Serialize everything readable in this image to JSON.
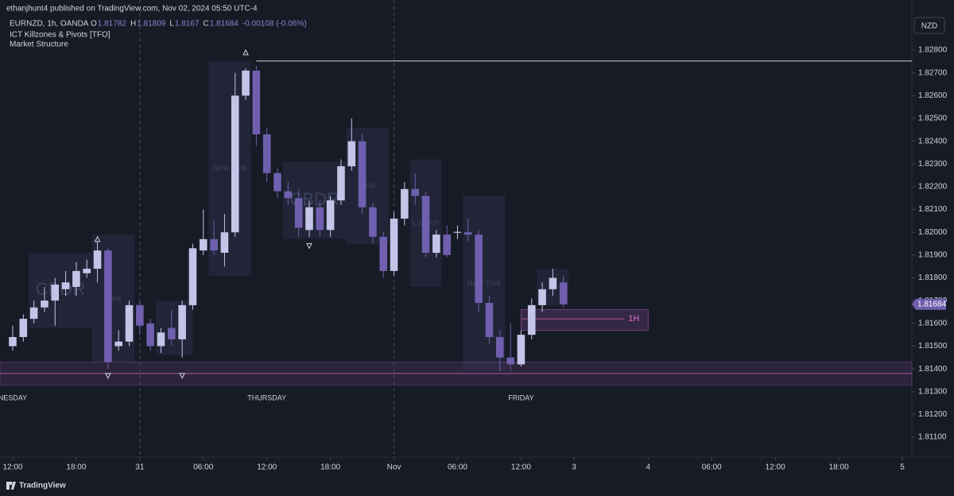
{
  "chart_data": {
    "type": "candlestick",
    "header": "ethanjhunt4 published on TradingView.com, Nov 02, 2024 05:50 UTC-4",
    "symbol": "EURNZD, 1h, OANDA",
    "ohlc_legend": [
      {
        "label": "O",
        "value": 1.81782
      },
      {
        "label": "H",
        "value": 1.81809
      },
      {
        "label": "L",
        "value": 1.8167
      },
      {
        "label": "C",
        "value": 1.81684
      }
    ],
    "change": -0.00108,
    "change_pct": "(-0.06%)",
    "indicators": [
      "ICT Killzones & Pivots [TFO]",
      "Market Structure"
    ],
    "currency": "NZD",
    "footer": "TradingView",
    "up_color": "#c4c4e8",
    "down_color": "#6f5fae",
    "x": [
      0,
      1,
      2,
      3,
      4,
      5,
      6,
      7,
      8,
      9,
      10,
      11,
      12,
      13,
      14,
      15,
      16,
      17,
      18,
      19,
      20,
      21,
      22,
      23,
      24,
      25,
      26,
      27,
      28,
      29,
      30,
      31,
      32,
      33,
      34,
      35,
      36,
      37,
      38,
      39,
      40,
      41,
      42,
      43,
      44,
      45,
      46,
      47,
      48,
      49,
      50,
      51,
      52
    ],
    "open": [
      1.815,
      1.8154,
      1.8162,
      1.8167,
      1.817,
      1.8175,
      1.8176,
      1.8182,
      1.8184,
      1.8192,
      1.815,
      1.8152,
      1.8168,
      1.816,
      1.815,
      1.8158,
      1.8153,
      1.8168,
      1.8192,
      1.8197,
      1.8191,
      1.82,
      1.826,
      1.8271,
      1.8243,
      1.8226,
      1.8218,
      1.8215,
      1.8201,
      1.8211,
      1.8201,
      1.8214,
      1.8229,
      1.824,
      1.8211,
      1.8198,
      1.8183,
      1.8206,
      1.8219,
      1.8216,
      1.8191,
      1.8199,
      1.81998,
      1.82,
      1.8199,
      1.8169,
      1.8154,
      1.8145,
      1.8142,
      1.8155,
      1.8168,
      1.8175,
      1.8178
    ],
    "high": [
      1.8159,
      1.8164,
      1.817,
      1.8176,
      1.818,
      1.8183,
      1.8187,
      1.8188,
      1.8196,
      1.8193,
      1.8157,
      1.817,
      1.817,
      1.8162,
      1.8158,
      1.8166,
      1.817,
      1.8195,
      1.821,
      1.8205,
      1.8208,
      1.827,
      1.8272,
      1.8273,
      1.8246,
      1.8228,
      1.8222,
      1.8219,
      1.8214,
      1.8214,
      1.8216,
      1.8232,
      1.825,
      1.8243,
      1.8213,
      1.82,
      1.8209,
      1.8222,
      1.8226,
      1.8218,
      1.8201,
      1.8203,
      1.8203,
      1.8206,
      1.8201,
      1.8172,
      1.8157,
      1.816,
      1.8157,
      1.8171,
      1.8178,
      1.8184,
      1.8181
    ],
    "low": [
      1.8148,
      1.8152,
      1.816,
      1.8165,
      1.8159,
      1.8172,
      1.8172,
      1.818,
      1.8178,
      1.814,
      1.8148,
      1.815,
      1.8155,
      1.8148,
      1.8147,
      1.815,
      1.8145,
      1.8166,
      1.819,
      1.819,
      1.8185,
      1.8198,
      1.8258,
      1.8238,
      1.8222,
      1.8215,
      1.8212,
      1.8198,
      1.8198,
      1.8198,
      1.8198,
      1.8212,
      1.8227,
      1.8208,
      1.8195,
      1.818,
      1.8181,
      1.8203,
      1.8212,
      1.8189,
      1.8189,
      1.8189,
      1.8197,
      1.8196,
      1.8165,
      1.8151,
      1.8139,
      1.8139,
      1.8141,
      1.8153,
      1.8165,
      1.8172,
      1.8167
    ],
    "close": [
      1.8154,
      1.8162,
      1.8167,
      1.817,
      1.8177,
      1.8178,
      1.8183,
      1.8184,
      1.8192,
      1.8143,
      1.8152,
      1.8168,
      1.8159,
      1.815,
      1.8156,
      1.8153,
      1.8168,
      1.8193,
      1.8197,
      1.8192,
      1.82,
      1.826,
      1.8271,
      1.8243,
      1.8226,
      1.8218,
      1.8215,
      1.8202,
      1.8211,
      1.8201,
      1.8214,
      1.8229,
      1.824,
      1.8211,
      1.8198,
      1.8183,
      1.8206,
      1.8219,
      1.8216,
      1.8191,
      1.8199,
      1.819,
      1.82002,
      1.8199,
      1.8169,
      1.8154,
      1.8145,
      1.8142,
      1.8155,
      1.8168,
      1.8175,
      1.818,
      1.81684
    ],
    "last_price": 1.81684,
    "xlim": [
      -1.2,
      84.9
    ],
    "ylim": [
      1.81013,
      1.8302
    ],
    "yticks": [
      {
        "value": 1.811,
        "label": "1.81100"
      },
      {
        "value": 1.812,
        "label": "1.81200"
      },
      {
        "value": 1.813,
        "label": "1.81300"
      },
      {
        "value": 1.814,
        "label": "1.81400"
      },
      {
        "value": 1.815,
        "label": "1.81500"
      },
      {
        "value": 1.816,
        "label": "1.81600"
      },
      {
        "value": 1.817,
        "label": "1.81700"
      },
      {
        "value": 1.818,
        "label": "1.81800"
      },
      {
        "value": 1.819,
        "label": "1.81900"
      },
      {
        "value": 1.82,
        "label": "1.82000"
      },
      {
        "value": 1.821,
        "label": "1.82100"
      },
      {
        "value": 1.822,
        "label": "1.82200"
      },
      {
        "value": 1.823,
        "label": "1.82300"
      },
      {
        "value": 1.824,
        "label": "1.82400"
      },
      {
        "value": 1.825,
        "label": "1.82500"
      },
      {
        "value": 1.826,
        "label": "1.82600"
      },
      {
        "value": 1.827,
        "label": "1.82700"
      },
      {
        "value": 1.828,
        "label": "1.82800"
      }
    ],
    "xticks": [
      {
        "value": 0,
        "label": "12:00"
      },
      {
        "value": 6,
        "label": "18:00"
      },
      {
        "value": 12,
        "label": "31"
      },
      {
        "value": 18,
        "label": "06:00"
      },
      {
        "value": 24,
        "label": "12:00"
      },
      {
        "value": 30,
        "label": "18:00"
      },
      {
        "value": 36,
        "label": "Nov"
      },
      {
        "value": 42,
        "label": "06:00"
      },
      {
        "value": 48,
        "label": "12:00"
      },
      {
        "value": 53,
        "label": "3"
      },
      {
        "value": 60,
        "label": "4"
      },
      {
        "value": 66,
        "label": "06:00"
      },
      {
        "value": 72,
        "label": "12:00"
      },
      {
        "value": 78,
        "label": "18:00"
      },
      {
        "value": 84,
        "label": "5"
      }
    ],
    "day_labels": [
      {
        "x": 0,
        "label": "NESDAY"
      },
      {
        "x": 24,
        "label": "THURSDAY"
      },
      {
        "x": 48,
        "label": "FRIDAY"
      }
    ],
    "separators": [
      12,
      36
    ],
    "sessions": [
      {
        "label": "CBDR",
        "x": [
          2,
          7
        ],
        "price": [
          1.8158,
          1.8191
        ]
      },
      {
        "label": "Asia",
        "x": [
          8,
          11
        ],
        "price": [
          1.8143,
          1.8199
        ]
      },
      {
        "x": [
          14,
          16.5
        ],
        "price": [
          1.8146,
          1.817
        ]
      },
      {
        "label": "New York",
        "x": [
          19,
          22
        ],
        "price": [
          1.8181,
          1.8275
        ]
      },
      {
        "label": "CBDR",
        "x": [
          26,
          31
        ],
        "price": [
          1.8197,
          1.8231
        ]
      },
      {
        "label": "Asia",
        "x": [
          32,
          35
        ],
        "price": [
          1.8195,
          1.8246
        ]
      },
      {
        "label": "London",
        "x": [
          38,
          40
        ],
        "price": [
          1.8176,
          1.8232
        ]
      },
      {
        "label": "New York",
        "x": [
          43,
          46
        ],
        "price": [
          1.8139,
          1.8216
        ]
      },
      {
        "x": [
          50,
          52
        ],
        "price": [
          1.8168,
          1.8184
        ]
      }
    ],
    "high_level": {
      "price": 1.82752,
      "from": 23
    },
    "zone": {
      "price": [
        1.8133,
        1.8143
      ],
      "line": 1.8138
    },
    "fvg": {
      "label": "1H",
      "price": [
        1.8157,
        1.8166
      ],
      "line": 1.8162,
      "x": [
        48,
        60
      ]
    },
    "pivots": [
      {
        "x": 22,
        "price": 1.8279,
        "dir": "up"
      },
      {
        "x": 8,
        "price": 1.8197,
        "dir": "up"
      },
      {
        "x": 9,
        "price": 1.8137,
        "dir": "down"
      },
      {
        "x": 16,
        "price": 1.8137,
        "dir": "down"
      },
      {
        "x": 28,
        "price": 1.8194,
        "dir": "down"
      }
    ]
  }
}
